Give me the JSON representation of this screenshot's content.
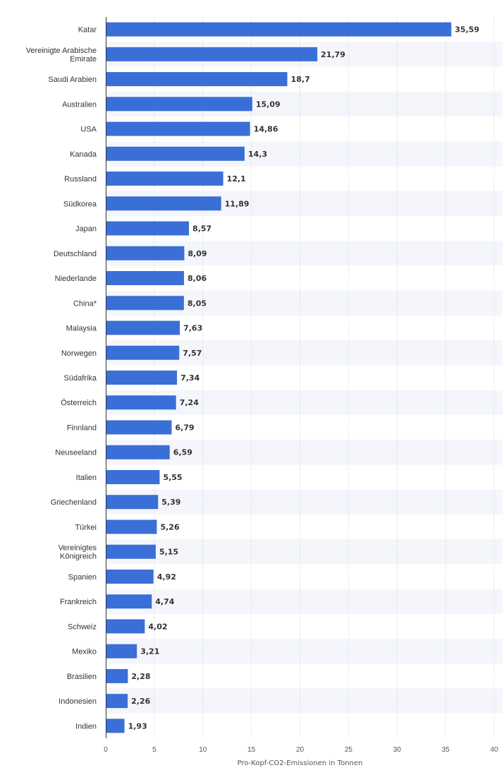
{
  "chart_data": {
    "type": "bar",
    "orientation": "horizontal",
    "xlabel": "Pro-Kopf-CO2-Emissionen in Tonnen",
    "ylabel": "",
    "xlim": [
      0,
      40
    ],
    "xticks": [
      0,
      5,
      10,
      15,
      20,
      25,
      30,
      35,
      40
    ],
    "grid": true,
    "bar_color": "#3a6fd8",
    "categories": [
      [
        "Katar"
      ],
      [
        "Vereinigte Arabische",
        "Emirate"
      ],
      [
        "Saudi Arabien"
      ],
      [
        "Australien"
      ],
      [
        "USA"
      ],
      [
        "Kanada"
      ],
      [
        "Russland"
      ],
      [
        "Südkorea"
      ],
      [
        "Japan"
      ],
      [
        "Deutschland"
      ],
      [
        "Niederlande"
      ],
      [
        "China*"
      ],
      [
        "Malaysia"
      ],
      [
        "Norwegen"
      ],
      [
        "Südafrika"
      ],
      [
        "Österreich"
      ],
      [
        "Finnland"
      ],
      [
        "Neuseeland"
      ],
      [
        "Italien"
      ],
      [
        "Griechenland"
      ],
      [
        "Türkei"
      ],
      [
        "Vereinigtes",
        "Königreich"
      ],
      [
        "Spanien"
      ],
      [
        "Frankreich"
      ],
      [
        "Schweiz"
      ],
      [
        "Mexiko"
      ],
      [
        "Brasilien"
      ],
      [
        "Indonesien"
      ],
      [
        "Indien"
      ]
    ],
    "values": [
      35.59,
      21.79,
      18.7,
      15.09,
      14.86,
      14.3,
      12.1,
      11.89,
      8.57,
      8.09,
      8.06,
      8.05,
      7.63,
      7.57,
      7.34,
      7.24,
      6.79,
      6.59,
      5.55,
      5.39,
      5.26,
      5.15,
      4.92,
      4.74,
      4.02,
      3.21,
      2.28,
      2.26,
      1.93
    ],
    "value_labels": [
      "35,59",
      "21,79",
      "18,7",
      "15,09",
      "14,86",
      "14,3",
      "12,1",
      "11,89",
      "8,57",
      "8,09",
      "8,06",
      "8,05",
      "7,63",
      "7,57",
      "7,34",
      "7,24",
      "6,79",
      "6,59",
      "5,55",
      "5,39",
      "5,26",
      "5,15",
      "4,92",
      "4,74",
      "4,02",
      "3,21",
      "2,28",
      "2,26",
      "1,93"
    ]
  }
}
